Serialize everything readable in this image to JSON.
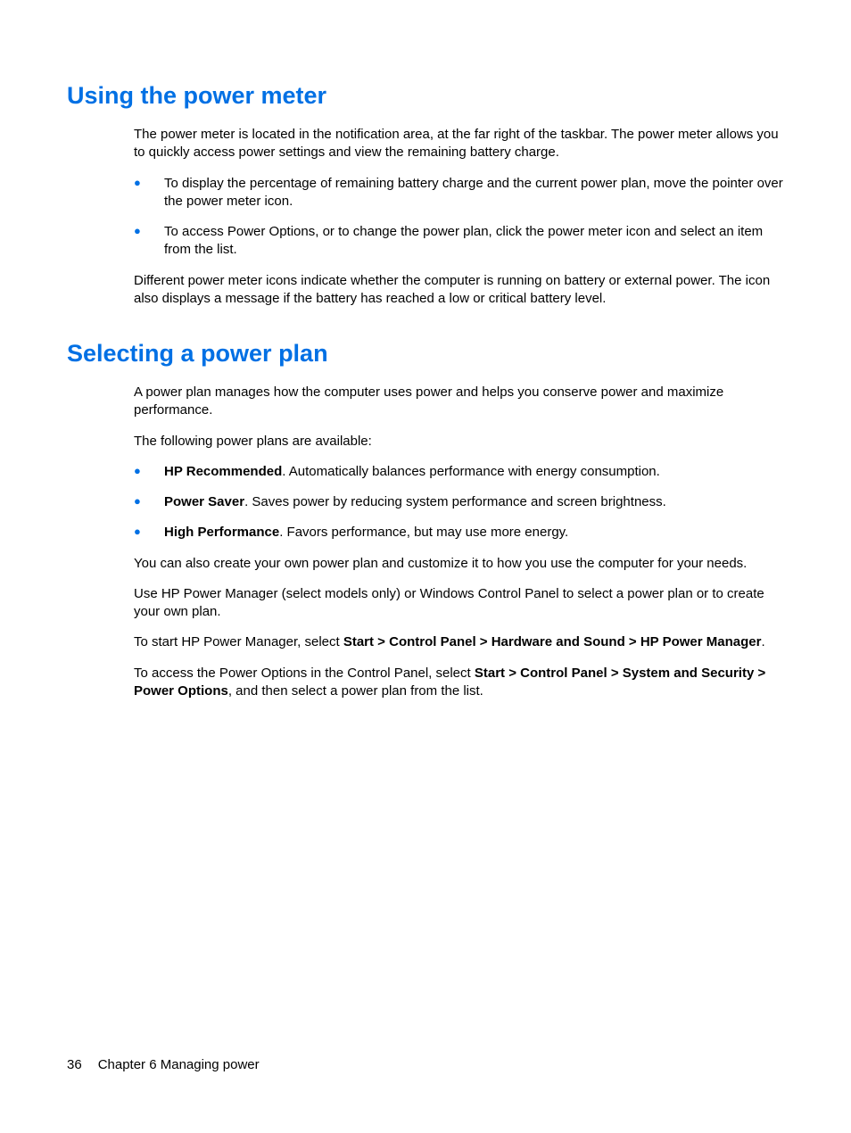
{
  "colors": {
    "heading": "#0070e4",
    "bullet": "#0070e4",
    "text": "#000000",
    "background": "#ffffff"
  },
  "typography": {
    "heading_fontsize": 27,
    "body_fontsize": 15,
    "footer_fontsize": 15,
    "font_family": "Arial"
  },
  "section1": {
    "heading": "Using the power meter",
    "intro": "The power meter is located in the notification area, at the far right of the taskbar. The power meter allows you to quickly access power settings and view the remaining battery charge.",
    "bullets": [
      "To display the percentage of remaining battery charge and the current power plan, move the pointer over the power meter icon.",
      "To access Power Options, or to change the power plan, click the power meter icon and select an item from the list."
    ],
    "outro": "Different power meter icons indicate whether the computer is running on battery or external power. The icon also displays a message if the battery has reached a low or critical battery level."
  },
  "section2": {
    "heading": "Selecting a power plan",
    "intro": "A power plan manages how the computer uses power and helps you conserve power and maximize performance.",
    "plans_intro": "The following power plans are available:",
    "plans": [
      {
        "name": "HP Recommended",
        "desc": ". Automatically balances performance with energy consumption."
      },
      {
        "name": "Power Saver",
        "desc": ". Saves power by reducing system performance and screen brightness."
      },
      {
        "name": "High Performance",
        "desc": ". Favors performance, but may use more energy."
      }
    ],
    "para1": "You can also create your own power plan and customize it to how you use the computer for your needs.",
    "para2": "Use HP Power Manager (select models only) or Windows Control Panel to select a power plan or to create your own plan.",
    "para3_pre": "To start HP Power Manager, select ",
    "para3_bold": "Start > Control Panel > Hardware and Sound > HP Power Manager",
    "para3_post": ".",
    "para4_pre": "To access the Power Options in the Control Panel, select ",
    "para4_bold": "Start > Control Panel > System and Security > Power Options",
    "para4_post": ", and then select a power plan from the list."
  },
  "footer": {
    "page_number": "36",
    "chapter": "Chapter 6   Managing power"
  }
}
